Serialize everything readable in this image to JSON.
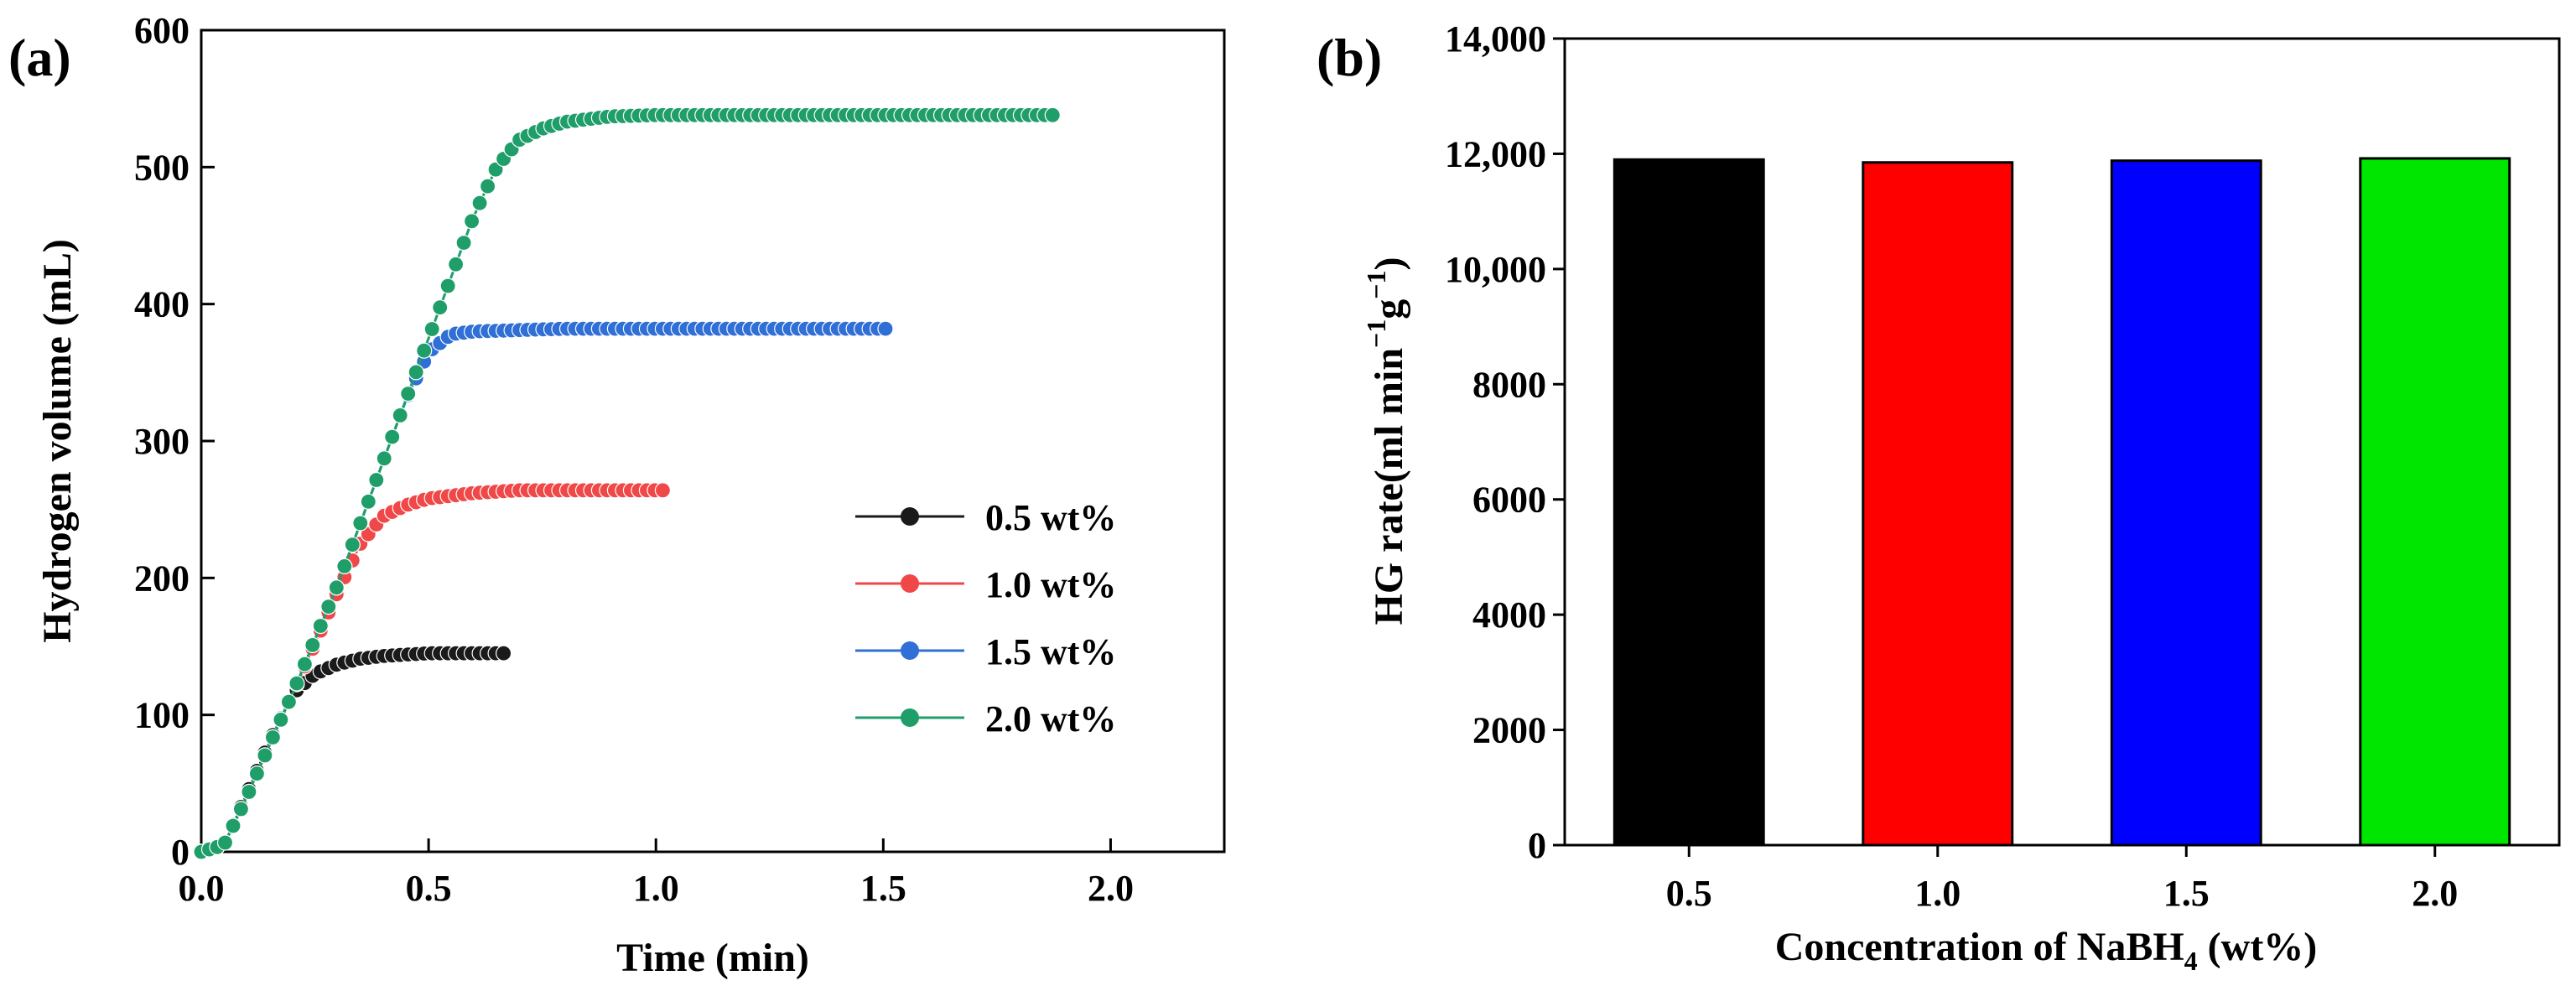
{
  "chart_data": [
    {
      "panel_label": "(a)",
      "type": "scatter",
      "xlabel": "Time (min)",
      "ylabel": "Hydrogen volume (mL)",
      "xlim": [
        0,
        2.25
      ],
      "ylim": [
        0,
        600
      ],
      "xticks": [
        0.0,
        0.5,
        1.0,
        1.5,
        2.0
      ],
      "xtick_labels": [
        "0.0",
        "0.5",
        "1.0",
        "1.5",
        "2.0"
      ],
      "yticks": [
        0,
        100,
        200,
        300,
        400,
        500,
        600
      ],
      "ytick_labels": [
        "0",
        "100",
        "200",
        "300",
        "400",
        "500",
        "600"
      ],
      "grid": false,
      "legend_position": "center-right",
      "series": [
        {
          "name": "0.5 wt%",
          "color": "#1a1a1a",
          "x": [
            0,
            0.05,
            0.1,
            0.15,
            0.2,
            0.25,
            0.3,
            0.35,
            0.4,
            0.5,
            0.6,
            0.68
          ],
          "y": [
            0,
            5,
            42,
            80,
            115,
            130,
            137,
            141,
            143,
            145,
            145,
            145
          ]
        },
        {
          "name": "1.0 wt%",
          "color": "#f04848",
          "x": [
            0,
            0.05,
            0.1,
            0.15,
            0.2,
            0.25,
            0.3,
            0.35,
            0.4,
            0.45,
            0.5,
            0.6,
            0.7,
            0.8,
            0.9,
            1.02
          ],
          "y": [
            0,
            5,
            40,
            78,
            115,
            152,
            190,
            225,
            245,
            253,
            258,
            262,
            264,
            264,
            264,
            264
          ]
        },
        {
          "name": "1.5 wt%",
          "color": "#2f6fd6",
          "x": [
            0,
            0.05,
            0.1,
            0.15,
            0.2,
            0.25,
            0.3,
            0.35,
            0.4,
            0.45,
            0.5,
            0.55,
            0.6,
            0.8,
            1.0,
            1.2,
            1.52
          ],
          "y": [
            0,
            5,
            40,
            78,
            115,
            155,
            195,
            240,
            285,
            330,
            365,
            378,
            380,
            382,
            382,
            382,
            382
          ]
        },
        {
          "name": "2.0 wt%",
          "color": "#1f9e6a",
          "x": [
            0,
            0.05,
            0.1,
            0.15,
            0.2,
            0.25,
            0.3,
            0.35,
            0.4,
            0.45,
            0.5,
            0.55,
            0.6,
            0.65,
            0.7,
            0.75,
            0.8,
            0.9,
            1.0,
            1.2,
            1.5,
            1.88
          ],
          "y": [
            0,
            5,
            40,
            78,
            115,
            155,
            195,
            240,
            285,
            330,
            375,
            420,
            465,
            500,
            520,
            528,
            533,
            537,
            538,
            538,
            538,
            538
          ]
        }
      ]
    },
    {
      "panel_label": "(b)",
      "type": "bar",
      "xlabel_parts": {
        "before": "Concentration of NaBH",
        "sub": "4",
        "after": " (wt%)"
      },
      "ylabel_parts": {
        "before": "HG rate(ml min",
        "sup1": "−1",
        "mid": "g",
        "sup2": "−1",
        "after": ")"
      },
      "categories": [
        "0.5",
        "1.0",
        "1.5",
        "2.0"
      ],
      "values": [
        11900,
        11850,
        11880,
        11920
      ],
      "colors": [
        "#000000",
        "#ff0000",
        "#0000ff",
        "#00e600"
      ],
      "ylim": [
        0,
        14000
      ],
      "yticks": [
        0,
        2000,
        4000,
        6000,
        8000,
        10000,
        12000,
        14000
      ],
      "ytick_labels": [
        "0",
        "2000",
        "4000",
        "6000",
        "8000",
        "10,000",
        "12,000",
        "14,000"
      ],
      "grid": false
    }
  ]
}
